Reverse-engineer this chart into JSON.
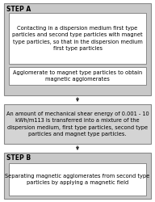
{
  "background_color": "#ffffff",
  "step_a_label": "STEP A",
  "step_b_label": "STEP B",
  "box1_text": "Contacting in a dispersion medium first type\nparticles and second type particles with magnet\ntype particles, so that in the dispersion medium\nfirst type particles",
  "box2_text": "Agglomerate to magnet type particles to obtain\nmagnetic agglomerates",
  "middle_text": "An amount of mechanical shear energy of 0.001 - 10\nkWh/m113 is transferred into a mixture of the\ndispersion medium, first type particles, second type\nparticles and magnet type particles.",
  "box3_text": "Separating magnetic agglomerates from second type\nparticles by applying a magnetic field",
  "font_size": 4.8,
  "label_font_size": 5.5,
  "outer_gray": "#c8c8c8",
  "mid_gray": "#d4d4d4",
  "box_bg": "#ffffff",
  "border_color": "#888888",
  "text_color": "#000000",
  "arrow_color": "#333333"
}
